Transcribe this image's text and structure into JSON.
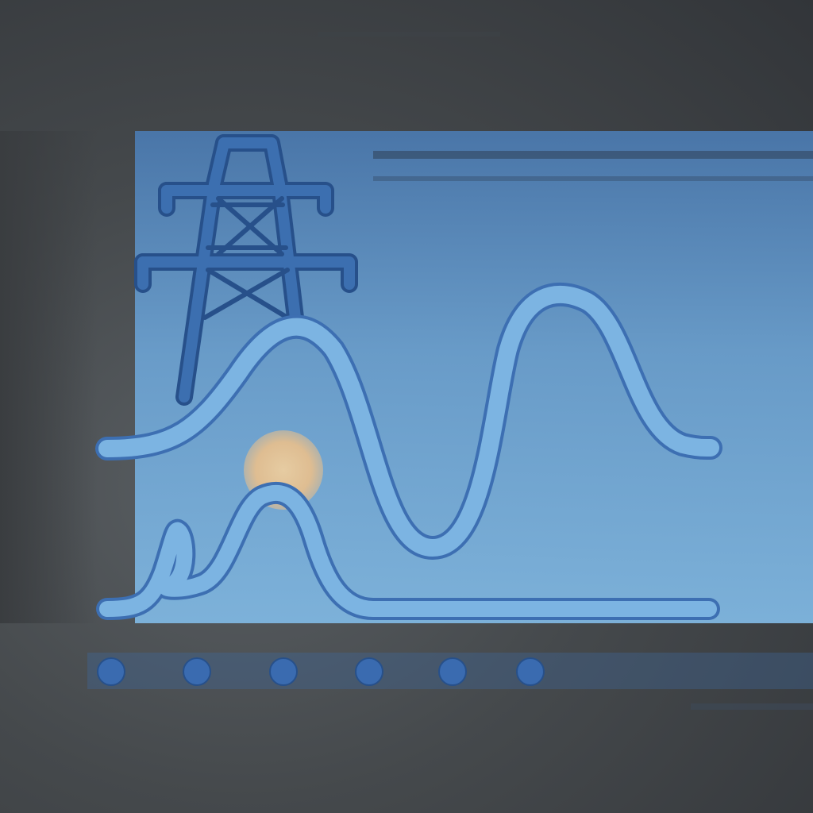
{
  "illustration": {
    "subject": "power-grid-load-curve",
    "icons": [
      "transmission-tower-icon",
      "sun-icon"
    ],
    "curves": [
      "primary-load-curve",
      "secondary-load-curve"
    ],
    "indicator_dots": 6
  },
  "colors": {
    "background_dark": "#35383b",
    "panel_blue_top": "#4a78ad",
    "panel_blue_mid": "#6a9fce",
    "panel_blue_bottom": "#7fb6e0",
    "tower": "#3c6fb0",
    "tower_outline": "#27508a",
    "curve_fill": "#7cb4e2",
    "curve_stroke": "#3d6fb2",
    "sun": "#e8bf8c",
    "dot": "#3a6bb0"
  }
}
